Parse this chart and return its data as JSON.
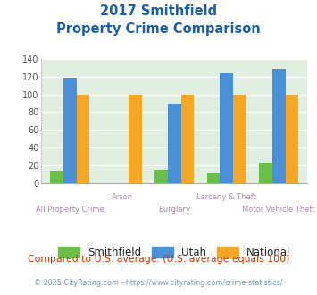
{
  "title_line1": "2017 Smithfield",
  "title_line2": "Property Crime Comparison",
  "categories": [
    "All Property Crime",
    "Arson",
    "Burglary",
    "Larceny & Theft",
    "Motor Vehicle Theft"
  ],
  "smithfield": [
    14,
    0,
    15,
    12,
    23
  ],
  "utah": [
    119,
    0,
    89,
    124,
    129
  ],
  "national": [
    100,
    100,
    100,
    100,
    100
  ],
  "smithfield_color": "#6abf47",
  "utah_color": "#4a90d9",
  "national_color": "#f5a623",
  "plot_bg": "#e0eee0",
  "title_color": "#1a5fa8",
  "ylabel_max": 140,
  "yticks": [
    0,
    20,
    40,
    60,
    80,
    100,
    120,
    140
  ],
  "footnote1": "Compared to U.S. average. (U.S. average equals 100)",
  "footnote2": "© 2025 CityRating.com - https://www.cityrating.com/crime-statistics/",
  "footnote1_color": "#cc3300",
  "footnote2_color": "#7799aa",
  "x_label_color_top": "#aa88aa",
  "x_label_color_bot": "#aa88aa",
  "bar_width": 0.25
}
